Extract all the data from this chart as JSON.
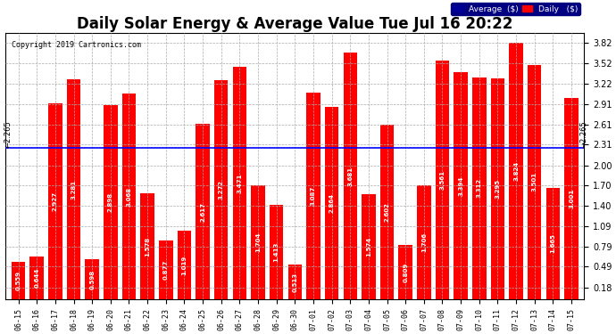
{
  "title": "Daily Solar Energy & Average Value Tue Jul 16 20:22",
  "copyright": "Copyright 2019 Cartronics.com",
  "average_value": 2.265,
  "bar_color": "#FF0000",
  "average_line_color": "#0000FF",
  "background_color": "#FFFFFF",
  "grid_color": "#AAAAAA",
  "categories": [
    "06-15",
    "06-16",
    "06-17",
    "06-18",
    "06-19",
    "06-20",
    "06-21",
    "06-22",
    "06-23",
    "06-24",
    "06-25",
    "06-26",
    "06-27",
    "06-28",
    "06-29",
    "06-30",
    "07-01",
    "07-02",
    "07-03",
    "07-04",
    "07-05",
    "07-06",
    "07-07",
    "07-08",
    "07-09",
    "07-10",
    "07-11",
    "07-12",
    "07-13",
    "07-14",
    "07-15"
  ],
  "values": [
    0.559,
    0.644,
    2.927,
    3.281,
    0.598,
    2.898,
    3.068,
    1.578,
    0.877,
    1.019,
    2.617,
    3.272,
    3.471,
    1.704,
    1.413,
    0.513,
    3.087,
    2.864,
    3.681,
    1.574,
    2.602,
    0.809,
    1.706,
    3.561,
    3.394,
    3.312,
    3.295,
    3.824,
    3.501,
    1.665,
    3.001
  ],
  "ylim_min": 0.0,
  "ylim_max": 3.97,
  "yticks": [
    0.18,
    0.49,
    0.79,
    1.09,
    1.4,
    1.7,
    2.0,
    2.31,
    2.61,
    2.91,
    3.22,
    3.52,
    3.82
  ],
  "legend_avg_color": "#000099",
  "legend_daily_color": "#FF0000",
  "title_fontsize": 12,
  "bar_width": 0.75
}
